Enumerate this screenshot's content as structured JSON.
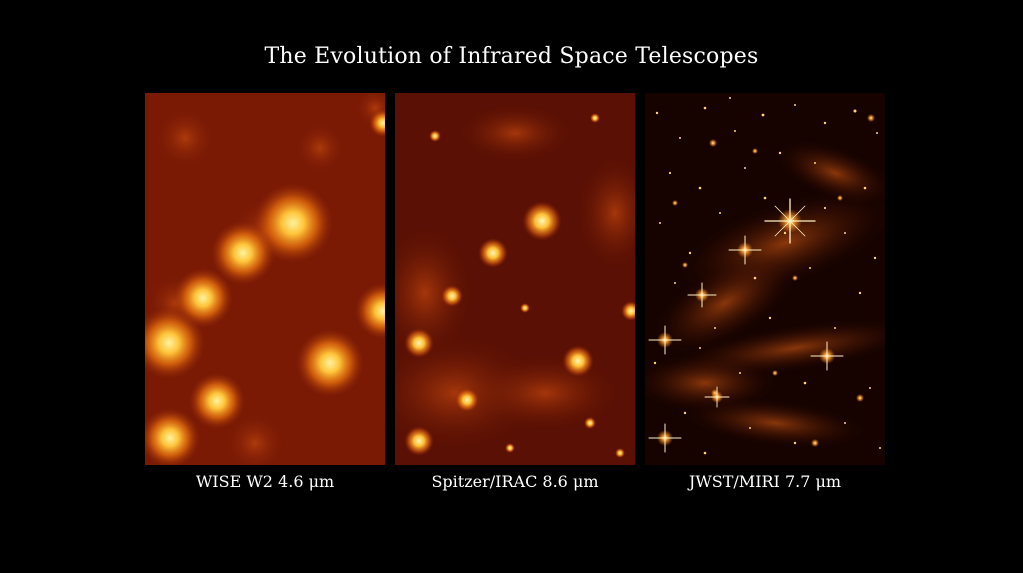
{
  "title": "The Evolution of Infrared Space Telescopes",
  "panels": [
    {
      "caption": "WISE W2 4.6 μm"
    },
    {
      "caption": "Spitzer/IRAC 8.6 μm"
    },
    {
      "caption": "JWST/MIRI 7.7 μm"
    }
  ],
  "colors": {
    "background": "#000000",
    "wise_base": "#7a1a05",
    "spitzer_base": "#5a1004",
    "jwst_base": "#160300",
    "star_core": "#fff6b0",
    "star_glow": "#ff9a1a"
  }
}
